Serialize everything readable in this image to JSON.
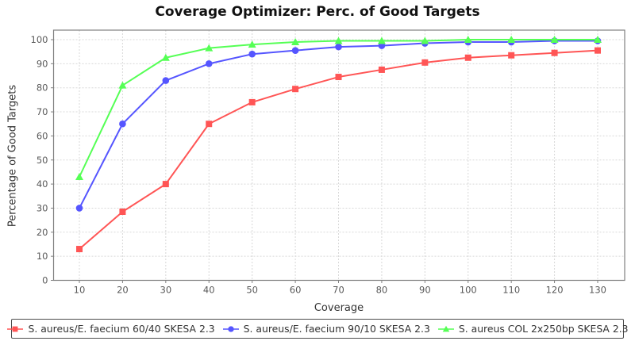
{
  "title": "Coverage Optimizer: Perc. of Good Targets",
  "chart_data": {
    "type": "line",
    "title": "Coverage Optimizer: Perc. of Good Targets",
    "xlabel": "Coverage",
    "ylabel": "Percentage of Good Targets",
    "x": [
      10,
      20,
      30,
      40,
      50,
      60,
      70,
      80,
      90,
      100,
      110,
      120,
      130
    ],
    "xticks": [
      10,
      20,
      30,
      40,
      50,
      60,
      70,
      80,
      90,
      100,
      110,
      120,
      130
    ],
    "yticks": [
      0,
      10,
      20,
      30,
      40,
      50,
      60,
      70,
      80,
      90,
      100
    ],
    "xlim": [
      10,
      130
    ],
    "ylim": [
      0,
      100
    ],
    "grid": "dashed",
    "legend_position": "bottom",
    "series": [
      {
        "name": "S. aureus/E. faecium 60/40 SKESA 2.3",
        "marker": "square",
        "color": "#ff5555",
        "values": [
          13,
          28.5,
          40,
          65,
          74,
          79.5,
          84.5,
          87.5,
          90.5,
          92.5,
          93.5,
          94.5,
          95.5
        ]
      },
      {
        "name": "S. aureus/E. faecium 90/10 SKESA 2.3",
        "marker": "circle",
        "color": "#5555ff",
        "values": [
          30,
          65,
          83,
          90,
          94,
          95.5,
          97,
          97.5,
          98.5,
          99,
          99,
          99.5,
          99.5
        ]
      },
      {
        "name": "S. aureus COL 2x250bp SKESA 2.3",
        "marker": "triangle",
        "color": "#55ff55",
        "values": [
          43,
          81,
          92.5,
          96.5,
          98,
          99,
          99.5,
          99.5,
          99.5,
          100,
          100,
          100,
          100
        ]
      }
    ]
  },
  "colors": {
    "grid": "#d8d8d8",
    "plot_border": "#808080",
    "tick": "#808080",
    "tick_text": "#595959",
    "axis_text": "#333333",
    "title_text": "#111111",
    "legend_border": "#4d4d4d",
    "background": "#ffffff"
  }
}
